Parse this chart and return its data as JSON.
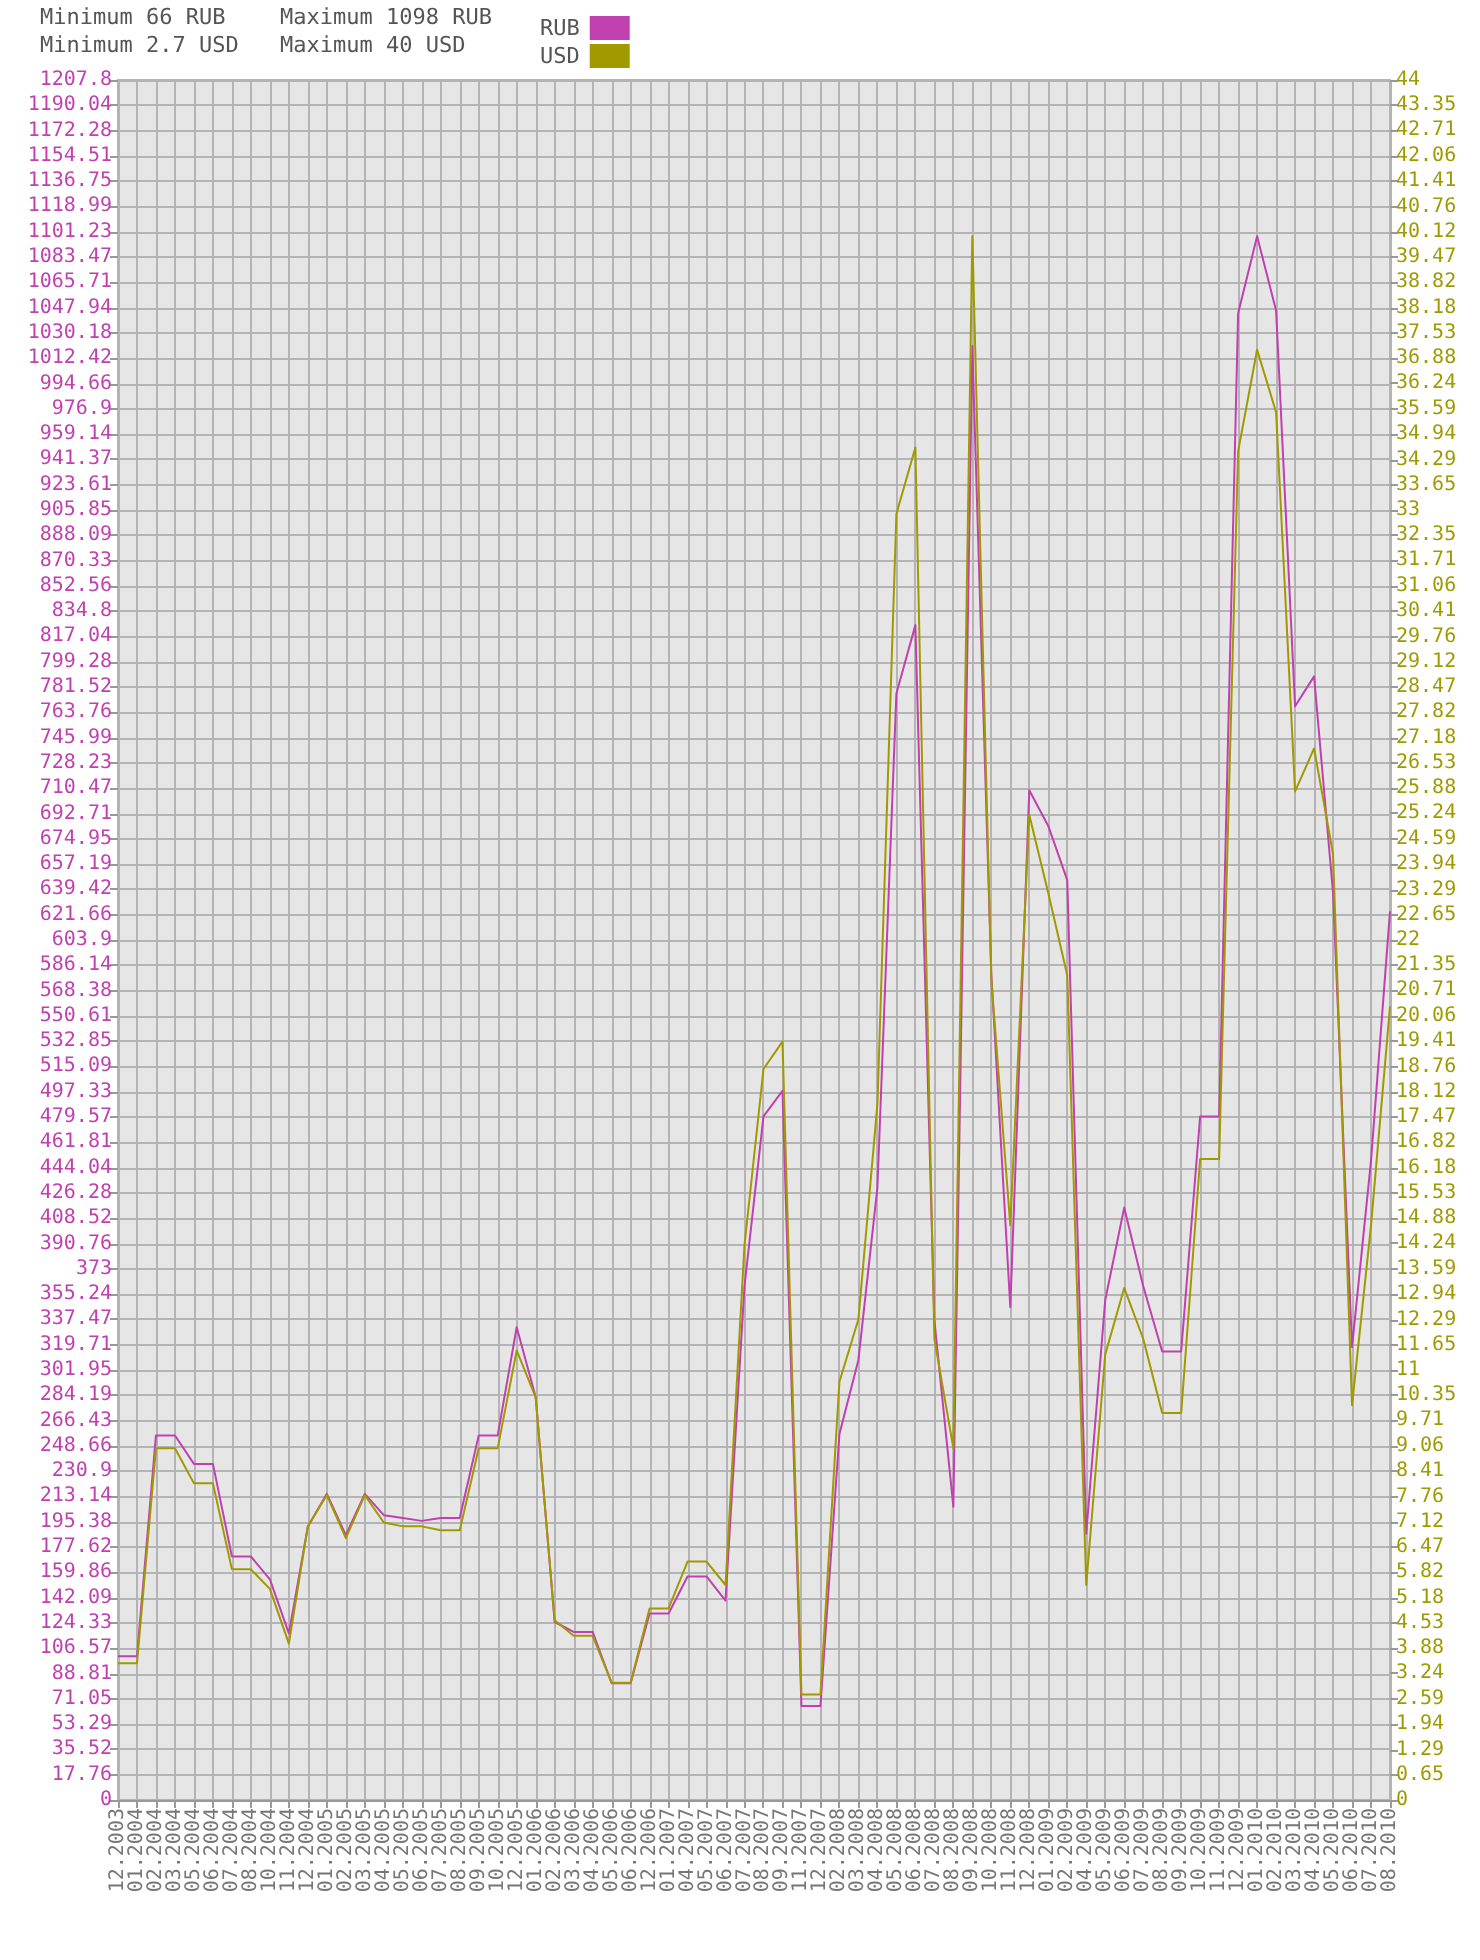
{
  "chart_data": {
    "type": "line",
    "annotations": [
      "Minimum 66 RUB",
      "Minimum 2.7 USD",
      "Maximum 1098 RUB",
      "Maximum 40 USD"
    ],
    "categories": [
      "12.2003",
      "01.2004",
      "02.2004",
      "03.2004",
      "05.2004",
      "06.2004",
      "07.2004",
      "08.2004",
      "10.2004",
      "11.2004",
      "12.2004",
      "01.2005",
      "02.2005",
      "03.2005",
      "04.2005",
      "05.2005",
      "06.2005",
      "07.2005",
      "08.2005",
      "09.2005",
      "10.2005",
      "12.2005",
      "01.2006",
      "02.2006",
      "03.2006",
      "04.2006",
      "05.2006",
      "06.2006",
      "12.2006",
      "01.2007",
      "04.2007",
      "05.2007",
      "06.2007",
      "07.2007",
      "08.2007",
      "09.2007",
      "11.2007",
      "12.2007",
      "02.2008",
      "03.2008",
      "04.2008",
      "05.2008",
      "06.2008",
      "07.2008",
      "08.2008",
      "09.2008",
      "10.2008",
      "11.2008",
      "12.2008",
      "01.2009",
      "02.2009",
      "04.2009",
      "05.2009",
      "06.2009",
      "07.2009",
      "08.2009",
      "09.2009",
      "10.2009",
      "11.2009",
      "12.2009",
      "01.2010",
      "02.2010",
      "03.2010",
      "04.2010",
      "05.2010",
      "06.2010",
      "07.2010",
      "08.2010"
    ],
    "series": [
      {
        "name": "RUB",
        "color": "#c040b0",
        "values": [
          101,
          101,
          256,
          256,
          236,
          236,
          171,
          171,
          155,
          117,
          192,
          215,
          186,
          215,
          200,
          198,
          196,
          198,
          198,
          256,
          256,
          332,
          283,
          125,
          118,
          118,
          82,
          82,
          131,
          131,
          157,
          157,
          140,
          361,
          480,
          498,
          66,
          66,
          257,
          309,
          430,
          777,
          825,
          337,
          206,
          1021,
          580,
          346,
          709,
          684,
          646,
          187,
          351,
          416,
          361,
          315,
          315,
          480,
          480,
          1044,
          1098,
          1046,
          768,
          789,
          637,
          318,
          449,
          624
        ]
      },
      {
        "name": "USD",
        "color": "#a09a00",
        "axis": "y2",
        "values": [
          3.5,
          3.5,
          9.0,
          9.0,
          8.1,
          8.1,
          5.9,
          5.9,
          5.4,
          4.0,
          7.0,
          7.8,
          6.7,
          7.8,
          7.1,
          7.0,
          7.0,
          6.9,
          6.9,
          9.0,
          9.0,
          11.5,
          10.3,
          4.6,
          4.2,
          4.2,
          3.0,
          3.0,
          4.9,
          4.9,
          6.1,
          6.1,
          5.5,
          14.2,
          18.7,
          19.4,
          2.7,
          2.7,
          10.7,
          12.3,
          17.8,
          32.9,
          34.6,
          11.8,
          9.0,
          40,
          21.0,
          14.7,
          25.2,
          23.2,
          21.1,
          5.5,
          11.4,
          13.1,
          11.8,
          9.9,
          9.9,
          16.4,
          16.4,
          34.5,
          37.1,
          35.5,
          25.8,
          26.9,
          24.2,
          10.1,
          14.7,
          20.3
        ]
      }
    ],
    "ylim": [
      0,
      1207.8
    ],
    "yticks": [
      0,
      17.76,
      35.52,
      53.29,
      71.05,
      88.81,
      106.57,
      124.33,
      142.09,
      159.86,
      177.62,
      195.38,
      213.14,
      230.9,
      248.66,
      266.43,
      284.19,
      301.95,
      319.71,
      337.47,
      355.24,
      373,
      390.76,
      408.52,
      426.28,
      444.04,
      461.81,
      479.57,
      497.33,
      515.09,
      532.85,
      550.61,
      568.38,
      586.14,
      603.9,
      621.66,
      639.42,
      657.19,
      674.95,
      692.71,
      710.47,
      728.23,
      745.99,
      763.76,
      781.52,
      799.28,
      817.04,
      834.8,
      852.56,
      870.33,
      888.09,
      905.85,
      923.61,
      941.37,
      959.14,
      976.9,
      994.66,
      1012.42,
      1030.18,
      1047.94,
      1065.71,
      1083.47,
      1101.23,
      1118.99,
      1136.75,
      1154.51,
      1172.28,
      1190.04,
      1207.8
    ],
    "y2lim": [
      0,
      44
    ],
    "y2ticks": [
      0,
      0.65,
      1.29,
      1.94,
      2.59,
      3.24,
      3.88,
      4.53,
      5.18,
      5.82,
      6.47,
      7.12,
      7.76,
      8.41,
      9.06,
      9.71,
      10.35,
      11,
      11.65,
      12.29,
      12.94,
      13.59,
      14.24,
      14.88,
      15.53,
      16.18,
      16.82,
      17.47,
      18.12,
      18.76,
      19.41,
      20.06,
      20.71,
      21.35,
      22,
      22.65,
      23.29,
      23.94,
      24.59,
      25.24,
      25.88,
      26.53,
      27.18,
      27.82,
      28.47,
      29.12,
      29.76,
      30.41,
      31.06,
      31.71,
      32.35,
      33,
      33.65,
      34.29,
      34.94,
      35.59,
      36.24,
      36.88,
      37.53,
      38.18,
      38.82,
      39.47,
      40.12,
      40.76,
      41.41,
      42.06,
      42.71,
      43.35,
      44
    ],
    "grid": true,
    "legend": "top",
    "marker": "none",
    "line_style": "solid"
  }
}
